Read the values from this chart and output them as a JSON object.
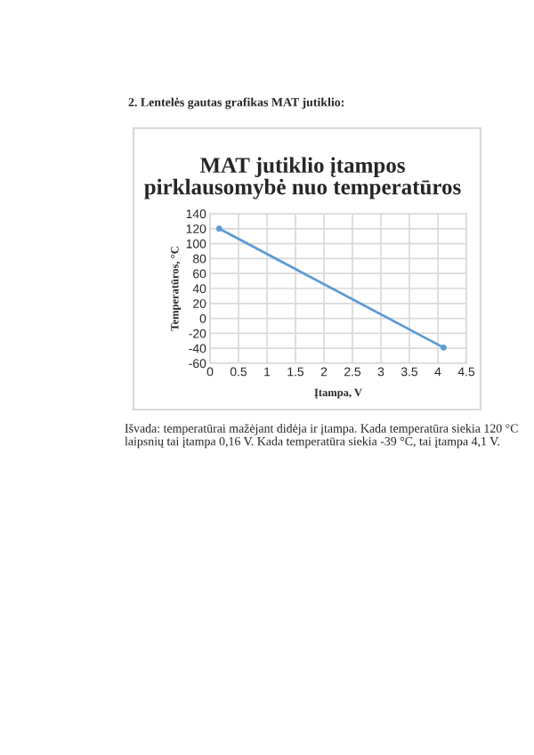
{
  "chart_data": {
    "type": "line",
    "title": "MAT jutiklio įtampos\npirklausomybė nuo temperatūros",
    "xlabel": "Įtampa, V",
    "ylabel": "Temperatūros, °C",
    "series": [
      {
        "color": "#5b9bd5",
        "x": [
          0.16,
          4.1
        ],
        "values": [
          120,
          -39
        ]
      }
    ],
    "xlim": [
      0,
      4.5
    ],
    "xticks": [
      0,
      0.5,
      1,
      1.5,
      2,
      2.5,
      3,
      3.5,
      4,
      4.5
    ],
    "ylim": [
      -60,
      140
    ],
    "yticks": [
      -60,
      -40,
      -20,
      0,
      20,
      40,
      60,
      80,
      100,
      120,
      140
    ],
    "grid": true,
    "marker": "circle",
    "line_style": "solid",
    "annotations": [
      "2. Lentelės gautas grafikas MAT jutiklio:",
      "Išvada: temperatūrai mažėjant didėja ir įtampa. Kada temperatūra siekia 120 °C laipsnių tai įtampa 0,16 V. Kada temperatūra siekia -39 °C, tai įtampa 4,1 V."
    ]
  }
}
